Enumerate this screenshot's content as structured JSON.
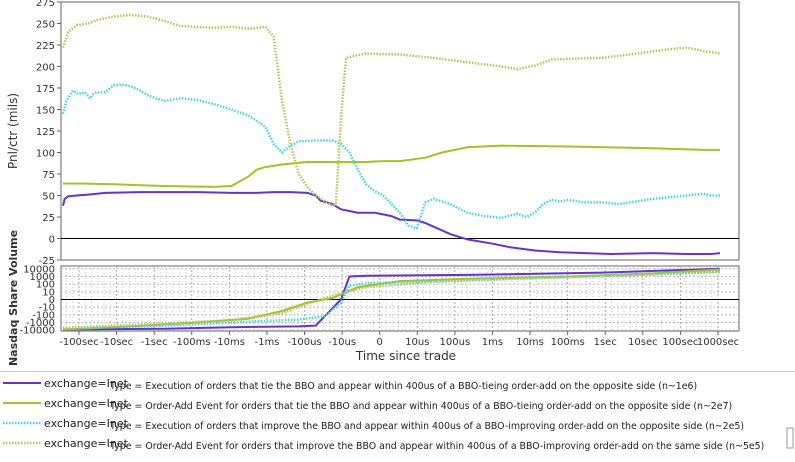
{
  "chart_data": [
    {
      "type": "line",
      "ylabel": "Pnl/ctr (mils)",
      "xlabel": "",
      "ylim": [
        -25,
        275
      ],
      "y_ticks": [
        "-25",
        "0",
        "25",
        "50",
        "75",
        "100",
        "125",
        "150",
        "175",
        "200",
        "225",
        "250",
        "275"
      ],
      "x_scale": "symmetric-log time index (0 = trade)",
      "grid": false,
      "series": [
        {
          "name": "Execution of orders that tie the BBO and appear within 400us of a BBO-tieing order-add on the opposite side (n~1e6)",
          "color": "#6633cc",
          "style": "solid",
          "points": [
            [
              0,
              38
            ],
            [
              1,
              46
            ],
            [
              3,
              49
            ],
            [
              8,
              50
            ],
            [
              15,
              51
            ],
            [
              25,
              53
            ],
            [
              45,
              54
            ],
            [
              60,
              54
            ],
            [
              80,
              54
            ],
            [
              100,
              53
            ],
            [
              115,
              53
            ],
            [
              125,
              54
            ],
            [
              135,
              54
            ],
            [
              145,
              53
            ],
            [
              150,
              50
            ],
            [
              153,
              44
            ],
            [
              160,
              40
            ],
            [
              165,
              34
            ],
            [
              175,
              30
            ],
            [
              185,
              30
            ],
            [
              190,
              28
            ],
            [
              195,
              26
            ],
            [
              200,
              22
            ],
            [
              210,
              21
            ],
            [
              215,
              18
            ],
            [
              222,
              12
            ],
            [
              230,
              5
            ],
            [
              240,
              -1
            ],
            [
              255,
              -6
            ],
            [
              265,
              -10
            ],
            [
              280,
              -14
            ],
            [
              295,
              -16
            ],
            [
              310,
              -17
            ],
            [
              325,
              -18
            ],
            [
              350,
              -17
            ],
            [
              370,
              -18
            ],
            [
              385,
              -18
            ],
            [
              390,
              -17
            ]
          ]
        },
        {
          "name": "Order-Add Event for orders that tie the BBO and appear within 400us of a BBO-tieing order-add on the opposite side (n~2e7)",
          "color": "#a8c020",
          "style": "solid",
          "points": [
            [
              0,
              64
            ],
            [
              10,
              64
            ],
            [
              30,
              63
            ],
            [
              60,
              61
            ],
            [
              90,
              60
            ],
            [
              100,
              61
            ],
            [
              110,
              72
            ],
            [
              115,
              80
            ],
            [
              120,
              83
            ],
            [
              130,
              86
            ],
            [
              145,
              89
            ],
            [
              160,
              89
            ],
            [
              170,
              89
            ],
            [
              180,
              89
            ],
            [
              190,
              90
            ],
            [
              200,
              90
            ],
            [
              215,
              94
            ],
            [
              225,
              100
            ],
            [
              240,
              106
            ],
            [
              260,
              108
            ],
            [
              300,
              107
            ],
            [
              350,
              105
            ],
            [
              380,
              103
            ],
            [
              390,
              103
            ]
          ]
        },
        {
          "name": "Execution of orders that improve the BBO and appear within 400us of a BBO-improving order-add on the opposite side (n~2e5)",
          "color": "#40d8e0",
          "style": "dotted",
          "points": [
            [
              0,
              145
            ],
            [
              2,
              160
            ],
            [
              6,
              172
            ],
            [
              9,
              168
            ],
            [
              13,
              170
            ],
            [
              16,
              163
            ],
            [
              18,
              168
            ],
            [
              20,
              170
            ],
            [
              25,
              170
            ],
            [
              30,
              178
            ],
            [
              35,
              179
            ],
            [
              40,
              177
            ],
            [
              45,
              173
            ],
            [
              50,
              167
            ],
            [
              55,
              163
            ],
            [
              60,
              160
            ],
            [
              70,
              163
            ],
            [
              80,
              161
            ],
            [
              90,
              156
            ],
            [
              100,
              150
            ],
            [
              110,
              143
            ],
            [
              120,
              130
            ],
            [
              125,
              110
            ],
            [
              130,
              100
            ],
            [
              135,
              108
            ],
            [
              140,
              113
            ],
            [
              150,
              114
            ],
            [
              160,
              114
            ],
            [
              165,
              110
            ],
            [
              170,
              100
            ],
            [
              175,
              80
            ],
            [
              180,
              63
            ],
            [
              185,
              55
            ],
            [
              190,
              50
            ],
            [
              195,
              40
            ],
            [
              200,
              30
            ],
            [
              205,
              15
            ],
            [
              210,
              12
            ],
            [
              215,
              42
            ],
            [
              220,
              46
            ],
            [
              230,
              40
            ],
            [
              240,
              30
            ],
            [
              250,
              26
            ],
            [
              260,
              24
            ],
            [
              270,
              29
            ],
            [
              275,
              25
            ],
            [
              280,
              30
            ],
            [
              285,
              40
            ],
            [
              290,
              45
            ],
            [
              295,
              43
            ],
            [
              300,
              45
            ],
            [
              310,
              42
            ],
            [
              320,
              42
            ],
            [
              330,
              40
            ],
            [
              340,
              43
            ],
            [
              350,
              46
            ],
            [
              360,
              48
            ],
            [
              370,
              50
            ],
            [
              380,
              52
            ],
            [
              385,
              50
            ],
            [
              390,
              50
            ]
          ]
        },
        {
          "name": "Order-Add Event for orders that improve the BBO and appear within 400us of a BBO-improving order-add on the same side (n~5e5)",
          "color": "#b8c45a",
          "style": "dotted",
          "points": [
            [
              0,
              222
            ],
            [
              3,
              240
            ],
            [
              8,
              248
            ],
            [
              15,
              250
            ],
            [
              20,
              254
            ],
            [
              30,
              258
            ],
            [
              40,
              260
            ],
            [
              50,
              258
            ],
            [
              60,
              253
            ],
            [
              70,
              247
            ],
            [
              80,
              246
            ],
            [
              90,
              245
            ],
            [
              100,
              246
            ],
            [
              110,
              244
            ],
            [
              115,
              245
            ],
            [
              120,
              246
            ],
            [
              125,
              235
            ],
            [
              130,
              160
            ],
            [
              135,
              110
            ],
            [
              140,
              75
            ],
            [
              145,
              60
            ],
            [
              150,
              50
            ],
            [
              155,
              44
            ],
            [
              160,
              38
            ],
            [
              162,
              40
            ],
            [
              165,
              140
            ],
            [
              168,
              210
            ],
            [
              172,
              212
            ],
            [
              180,
              215
            ],
            [
              200,
              214
            ],
            [
              220,
              210
            ],
            [
              240,
              205
            ],
            [
              260,
              200
            ],
            [
              270,
              197
            ],
            [
              280,
              201
            ],
            [
              290,
              208
            ],
            [
              300,
              209
            ],
            [
              320,
              210
            ],
            [
              340,
              215
            ],
            [
              360,
              220
            ],
            [
              370,
              222
            ],
            [
              380,
              218
            ],
            [
              390,
              215
            ]
          ]
        }
      ]
    },
    {
      "type": "line",
      "ylabel": "Nasdaq Share Volume",
      "xlabel": "Time since trade",
      "y_scale": "symmetric-log",
      "y_ticks": [
        "10000",
        "1000",
        "100",
        "10",
        "0",
        "-10",
        "-100",
        "-1000",
        "-10000"
      ],
      "x_ticks": [
        "-100sec",
        "-10sec",
        "-1sec",
        "-100ms",
        "-10ms",
        "-1ms",
        "-100us",
        "-10us",
        "0",
        "10us",
        "100us",
        "1ms",
        "10ms",
        "100ms",
        "1sec",
        "10sec",
        "100sec",
        "1000sec"
      ],
      "grid": true,
      "series": [
        {
          "name": "Execution of orders that tie the BBO (n~1e6)",
          "color": "#6633cc",
          "style": "solid",
          "points": [
            [
              0,
              -3.9
            ],
            [
              60,
              -3.8
            ],
            [
              100,
              -3.6
            ],
            [
              140,
              -3.5
            ],
            [
              150,
              -3.4
            ],
            [
              165,
              0
            ],
            [
              170,
              3.0
            ],
            [
              180,
              3.1
            ],
            [
              240,
              3.2
            ],
            [
              320,
              3.5
            ],
            [
              390,
              4.0
            ]
          ]
        },
        {
          "name": "Order-Add Event for orders that tie the BBO (n~2e7)",
          "color": "#a8c020",
          "style": "solid",
          "points": [
            [
              0,
              -3.9
            ],
            [
              40,
              -3.5
            ],
            [
              80,
              -3.0
            ],
            [
              110,
              -2.5
            ],
            [
              130,
              -1.5
            ],
            [
              145,
              -0.4
            ],
            [
              160,
              0.2
            ],
            [
              175,
              1.6
            ],
            [
              200,
              2.4
            ],
            [
              240,
              2.7
            ],
            [
              300,
              3.0
            ],
            [
              350,
              3.4
            ],
            [
              390,
              3.9
            ]
          ]
        },
        {
          "name": "Execution of orders that improve the BBO (n~2e5)",
          "color": "#40d8e0",
          "style": "dotted",
          "points": [
            [
              0,
              -3.8
            ],
            [
              60,
              -3.4
            ],
            [
              100,
              -3.0
            ],
            [
              140,
              -2.6
            ],
            [
              155,
              -2.2
            ],
            [
              165,
              -0.5
            ],
            [
              170,
              1.8
            ],
            [
              180,
              2.1
            ],
            [
              220,
              2.4
            ],
            [
              260,
              2.7
            ],
            [
              320,
              3.1
            ],
            [
              390,
              3.6
            ]
          ]
        },
        {
          "name": "Order-Add Event for orders that improve the BBO (n~5e5)",
          "color": "#b8c45a",
          "style": "dotted",
          "points": [
            [
              0,
              -3.7
            ],
            [
              50,
              -3.2
            ],
            [
              100,
              -2.7
            ],
            [
              130,
              -1.8
            ],
            [
              145,
              -0.6
            ],
            [
              160,
              0.5
            ],
            [
              180,
              1.6
            ],
            [
              220,
              2.3
            ],
            [
              270,
              2.7
            ],
            [
              330,
              3.1
            ],
            [
              390,
              3.6
            ]
          ]
        }
      ]
    }
  ],
  "legend": {
    "prefix": "exchange=Inet",
    "items": [
      {
        "color": "#6633cc",
        "style": "solid",
        "text": "Type = Execution of orders that tie the BBO and appear within 400us of a BBO-tieing order-add on the opposite side (n~1e6)"
      },
      {
        "color": "#a8c020",
        "style": "solid",
        "text": "Type = Order-Add Event for orders that tie the BBO and appear within 400us of a BBO-tieing order-add on the opposite side (n~2e7)"
      },
      {
        "color": "#40d8e0",
        "style": "dotted",
        "text": "Type = Execution of orders that improve the BBO and appear within 400us of a BBO-improving order-add on the opposite side (n~2e5)"
      },
      {
        "color": "#b8c45a",
        "style": "dotted",
        "text": "Type = Order-Add Event for orders that improve the BBO and appear within 400us of a BBO-improving order-add on the same side (n~5e5)"
      }
    ]
  }
}
